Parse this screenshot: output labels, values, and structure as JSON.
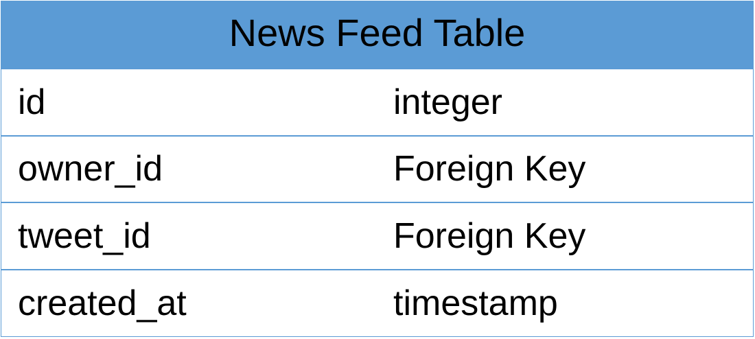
{
  "table": {
    "title": "News Feed Table",
    "rows": [
      {
        "name": "id",
        "type": "integer"
      },
      {
        "name": "owner_id",
        "type": "Foreign Key"
      },
      {
        "name": "tweet_id",
        "type": "Foreign Key"
      },
      {
        "name": "created_at",
        "type": "timestamp"
      }
    ]
  },
  "colors": {
    "header_background": "#5b9bd5",
    "border": "#5b9bd5",
    "text": "#000000"
  }
}
